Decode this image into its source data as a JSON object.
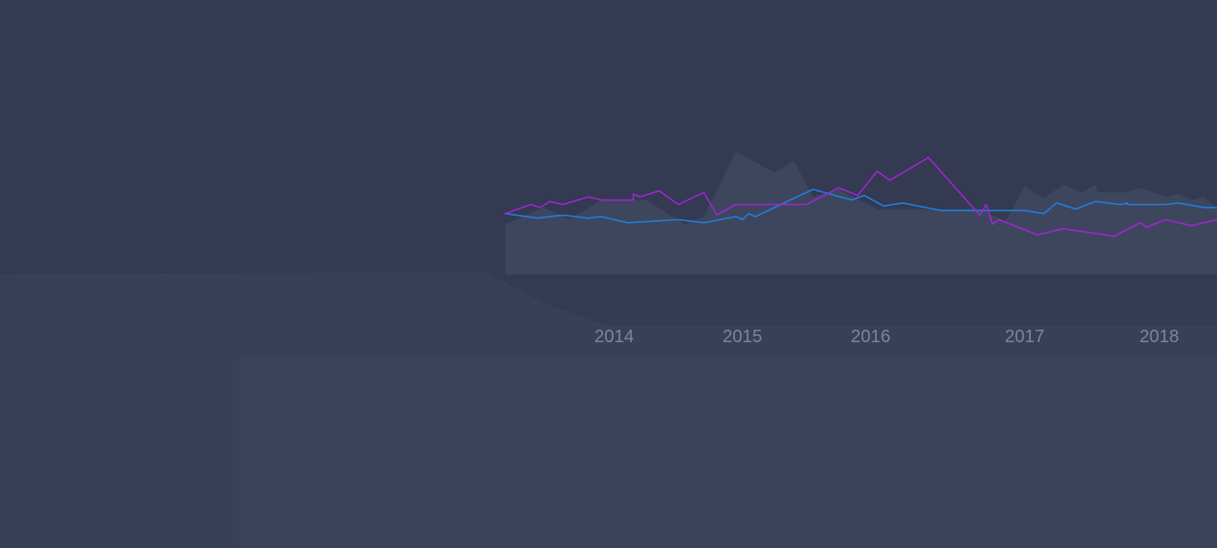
{
  "chart_data": {
    "type": "line",
    "title": "",
    "xlabel": "",
    "ylabel": "",
    "legend": "none",
    "grid": false,
    "xlim": [
      2013.15,
      2018.7
    ],
    "ylim": [
      0,
      100
    ],
    "x_ticks": [
      {
        "value": 2014.0,
        "label": "2014"
      },
      {
        "value": 2015.0,
        "label": "2015"
      },
      {
        "value": 2016.0,
        "label": "2016"
      },
      {
        "value": 2017.2,
        "label": "2017"
      },
      {
        "value": 2018.25,
        "label": "2018"
      }
    ],
    "colors": {
      "background": "#333a51",
      "band": "#384059",
      "area": "#3e465e",
      "blue": "#1f7fe0",
      "purple": "#a324d6",
      "tick": "#7d849b"
    },
    "series": [
      {
        "kind": "area",
        "color": "#3e465e",
        "points": [
          [
            2013.15,
            52
          ],
          [
            2013.45,
            63
          ],
          [
            2013.65,
            55
          ],
          [
            2013.9,
            68
          ],
          [
            2014.25,
            68
          ],
          [
            2014.55,
            52
          ],
          [
            2014.7,
            57
          ],
          [
            2014.95,
            100
          ],
          [
            2015.25,
            86
          ],
          [
            2015.4,
            94
          ],
          [
            2015.55,
            70
          ],
          [
            2015.75,
            75
          ],
          [
            2016.05,
            62
          ],
          [
            2016.85,
            62
          ],
          [
            2017.05,
            54
          ],
          [
            2017.2,
            77
          ],
          [
            2017.35,
            69
          ],
          [
            2017.5,
            78
          ],
          [
            2017.65,
            73
          ],
          [
            2017.75,
            78
          ],
          [
            2017.77,
            73
          ],
          [
            2018.0,
            73
          ],
          [
            2018.1,
            76
          ],
          [
            2018.3,
            70
          ],
          [
            2018.4,
            72
          ],
          [
            2018.5,
            68
          ],
          [
            2018.6,
            70
          ],
          [
            2018.7,
            63
          ]
        ]
      },
      {
        "kind": "line",
        "color": "#1f7fe0",
        "points": [
          [
            2013.15,
            59
          ],
          [
            2013.4,
            56
          ],
          [
            2013.6,
            58
          ],
          [
            2013.8,
            56
          ],
          [
            2013.9,
            57
          ],
          [
            2014.1,
            53
          ],
          [
            2014.5,
            55
          ],
          [
            2014.7,
            53
          ],
          [
            2014.95,
            57
          ],
          [
            2015.0,
            55
          ],
          [
            2015.05,
            59
          ],
          [
            2015.1,
            57
          ],
          [
            2015.55,
            75
          ],
          [
            2015.85,
            68
          ],
          [
            2015.95,
            71
          ],
          [
            2016.1,
            64
          ],
          [
            2016.25,
            66
          ],
          [
            2016.55,
            61
          ],
          [
            2017.2,
            61
          ],
          [
            2017.35,
            59
          ],
          [
            2017.45,
            66
          ],
          [
            2017.6,
            62
          ],
          [
            2017.75,
            67
          ],
          [
            2017.95,
            65
          ],
          [
            2018.0,
            66
          ],
          [
            2018.0,
            65
          ],
          [
            2018.3,
            65
          ],
          [
            2018.4,
            66
          ],
          [
            2018.6,
            63
          ],
          [
            2018.7,
            63
          ],
          [
            2018.75,
            62
          ]
        ]
      },
      {
        "kind": "line",
        "color": "#a324d6",
        "points": [
          [
            2013.15,
            59
          ],
          [
            2013.35,
            65
          ],
          [
            2013.42,
            63
          ],
          [
            2013.5,
            67
          ],
          [
            2013.6,
            65
          ],
          [
            2013.8,
            70
          ],
          [
            2013.9,
            68
          ],
          [
            2014.15,
            68
          ],
          [
            2014.15,
            72
          ],
          [
            2014.2,
            70
          ],
          [
            2014.35,
            74
          ],
          [
            2014.5,
            65
          ],
          [
            2014.7,
            73
          ],
          [
            2014.8,
            58
          ],
          [
            2014.95,
            65
          ],
          [
            2015.5,
            65
          ],
          [
            2015.75,
            76
          ],
          [
            2015.9,
            71
          ],
          [
            2016.05,
            87
          ],
          [
            2016.15,
            81
          ],
          [
            2016.45,
            96
          ],
          [
            2016.85,
            58
          ],
          [
            2016.9,
            65
          ],
          [
            2016.95,
            52
          ],
          [
            2017.0,
            55
          ],
          [
            2017.3,
            45
          ],
          [
            2017.5,
            49
          ],
          [
            2017.9,
            44
          ],
          [
            2018.1,
            53
          ],
          [
            2018.15,
            50
          ],
          [
            2018.3,
            55
          ],
          [
            2018.5,
            51
          ],
          [
            2018.7,
            55
          ],
          [
            2018.75,
            56
          ]
        ]
      }
    ]
  }
}
